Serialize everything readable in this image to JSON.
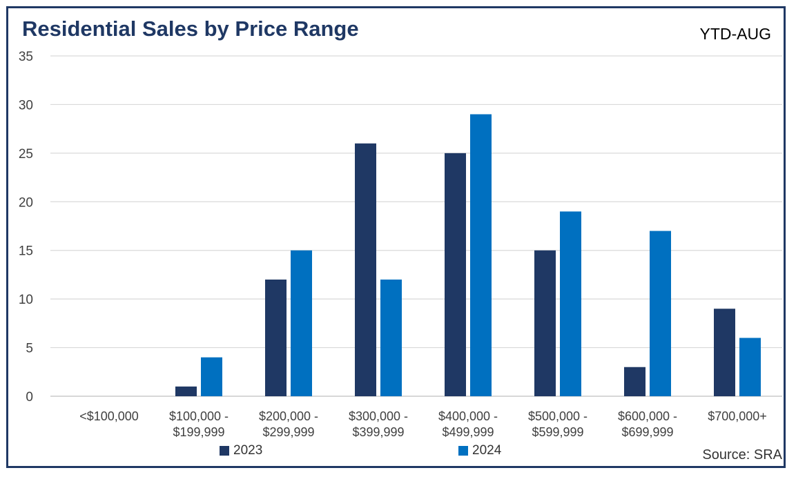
{
  "chart_data": {
    "type": "bar",
    "title": "Residential Sales by Price Range",
    "subtitle": "YTD-AUG",
    "source": "Source: SRA",
    "xlabel": "",
    "ylabel": "",
    "ylim": [
      0,
      35
    ],
    "yticks": [
      0,
      5,
      10,
      15,
      20,
      25,
      30,
      35
    ],
    "grid": true,
    "legend_position": "bottom",
    "categories": [
      [
        "<$100,000"
      ],
      [
        "$100,000 -",
        "$199,999"
      ],
      [
        "$200,000 -",
        "$299,999"
      ],
      [
        "$300,000 -",
        "$399,999"
      ],
      [
        "$400,000 -",
        "$499,999"
      ],
      [
        "$500,000 -",
        "$599,999"
      ],
      [
        "$600,000 -",
        "$699,999"
      ],
      [
        "$700,000+"
      ]
    ],
    "series": [
      {
        "name": "2023",
        "color": "#1f3864",
        "values": [
          0,
          1,
          12,
          26,
          25,
          15,
          3,
          9
        ]
      },
      {
        "name": "2024",
        "color": "#0070c0",
        "values": [
          0,
          4,
          15,
          12,
          29,
          19,
          17,
          6
        ]
      }
    ]
  }
}
